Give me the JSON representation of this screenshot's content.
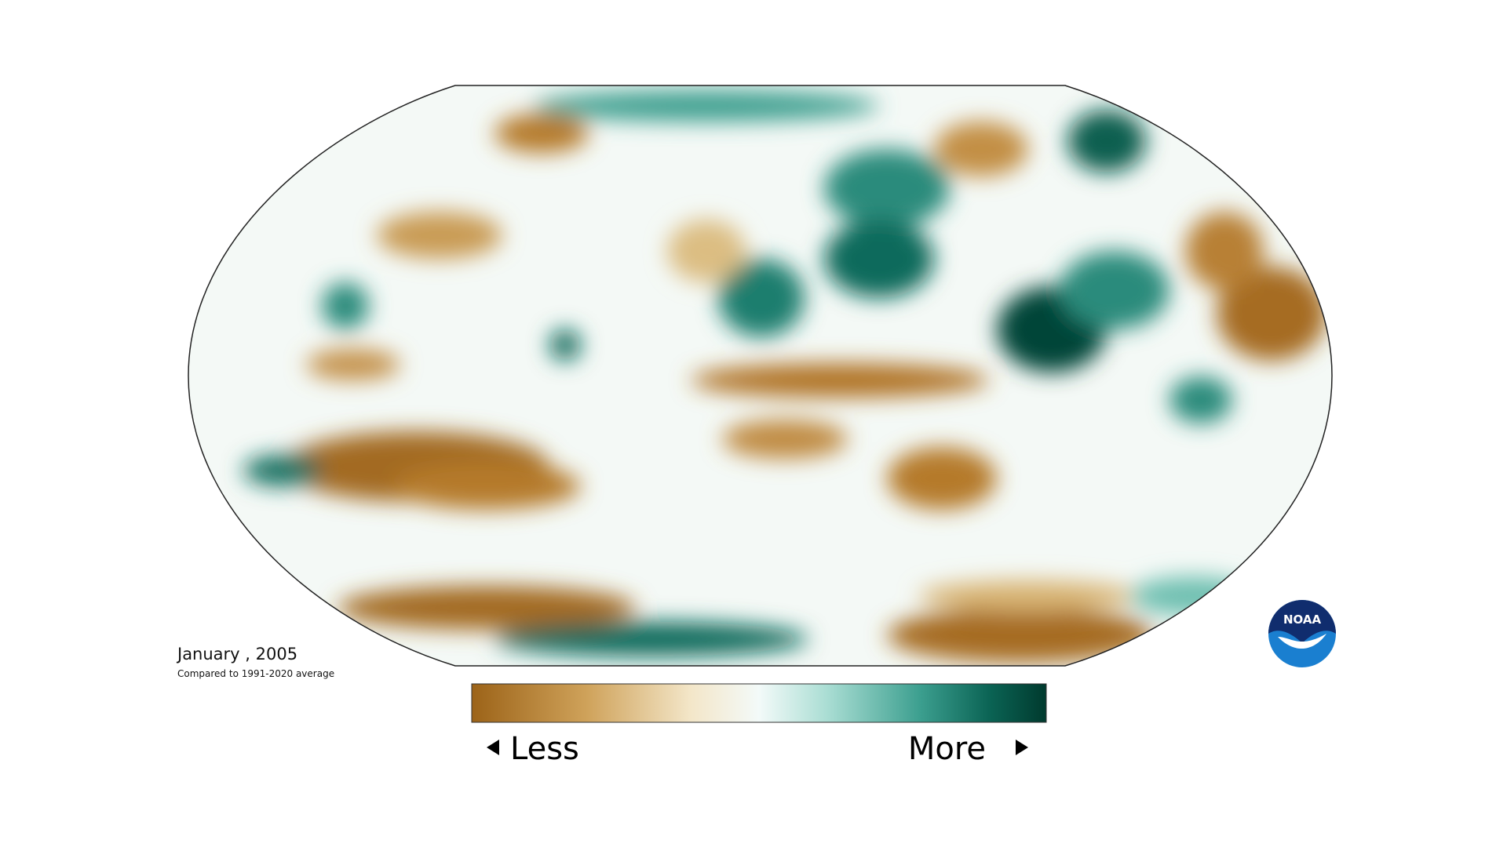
{
  "title": {
    "date": "January , 2005",
    "subtitle": "Compared to 1991-2020 average"
  },
  "legend": {
    "less": "Less",
    "more": "More"
  },
  "logo": "NOAA"
}
